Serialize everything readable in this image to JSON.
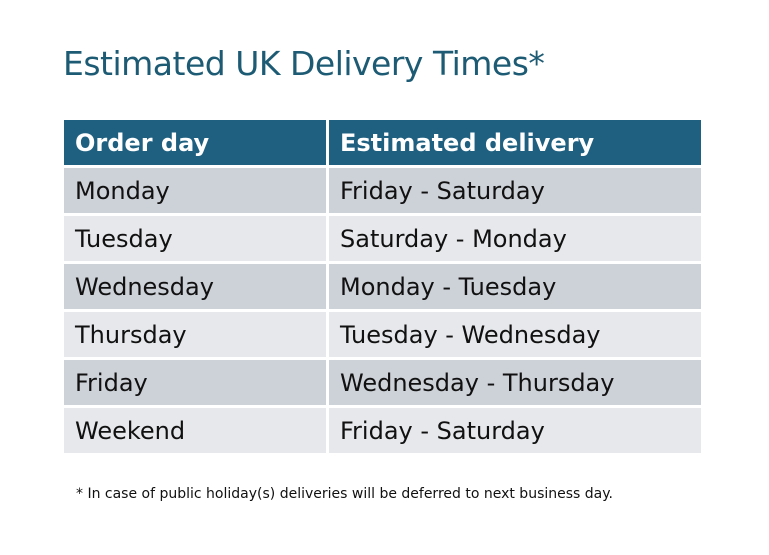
{
  "title": "Estimated UK Delivery Times*",
  "table": {
    "headers": [
      "Order day",
      "Estimated delivery"
    ],
    "rows": [
      [
        "Monday",
        "Friday - Saturday"
      ],
      [
        "Tuesday",
        "Saturday - Monday"
      ],
      [
        "Wednesday",
        "Monday - Tuesday"
      ],
      [
        "Thursday",
        "Tuesday - Wednesday"
      ],
      [
        "Friday",
        "Wednesday - Thursday"
      ],
      [
        "Weekend",
        "Friday - Saturday"
      ]
    ]
  },
  "footnote": "* In case of public holiday(s) deliveries will be deferred to next business day.",
  "colors": {
    "header": "#1f6080",
    "title": "#1d5b74",
    "row_odd": "#cdd1d8",
    "row_even": "#e6e8eb"
  }
}
